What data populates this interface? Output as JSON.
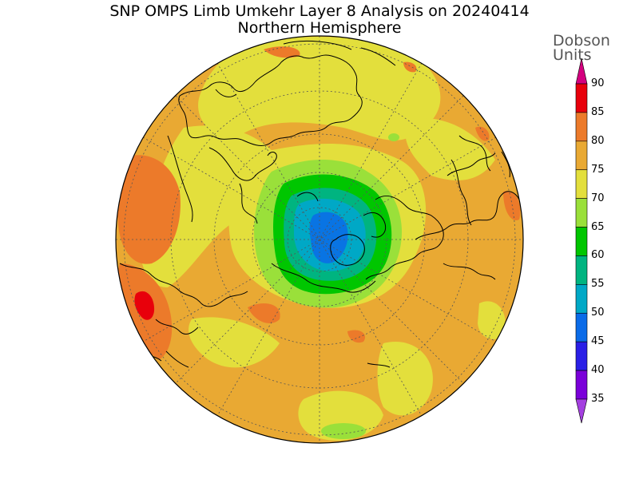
{
  "title": {
    "line1": "SNP OMPS Limb Umkehr Layer 8 Analysis on 20240414",
    "line2": "Northern Hemisphere"
  },
  "colorbar": {
    "unit_line1": "Dobson",
    "unit_line2": "Units",
    "levels": [
      {
        "label": "90",
        "color": "#d4007f"
      },
      {
        "label": "85",
        "color": "#e8000b"
      },
      {
        "label": "80",
        "color": "#ec7a2a"
      },
      {
        "label": "75",
        "color": "#e9a933"
      },
      {
        "label": "70",
        "color": "#e3df3c"
      },
      {
        "label": "65",
        "color": "#9ae03a"
      },
      {
        "label": "60",
        "color": "#00c600"
      },
      {
        "label": "55",
        "color": "#00b480"
      },
      {
        "label": "50",
        "color": "#00a8c6"
      },
      {
        "label": "45",
        "color": "#0a6be8"
      },
      {
        "label": "40",
        "color": "#2a1fe6"
      },
      {
        "label": "35",
        "color": "#7a00d9"
      }
    ],
    "bottom_color": "#a43fe0"
  },
  "map": {
    "projection": "north-polar-stereographic",
    "background_color": "#e9a933",
    "coastline_color": "#000000"
  }
}
